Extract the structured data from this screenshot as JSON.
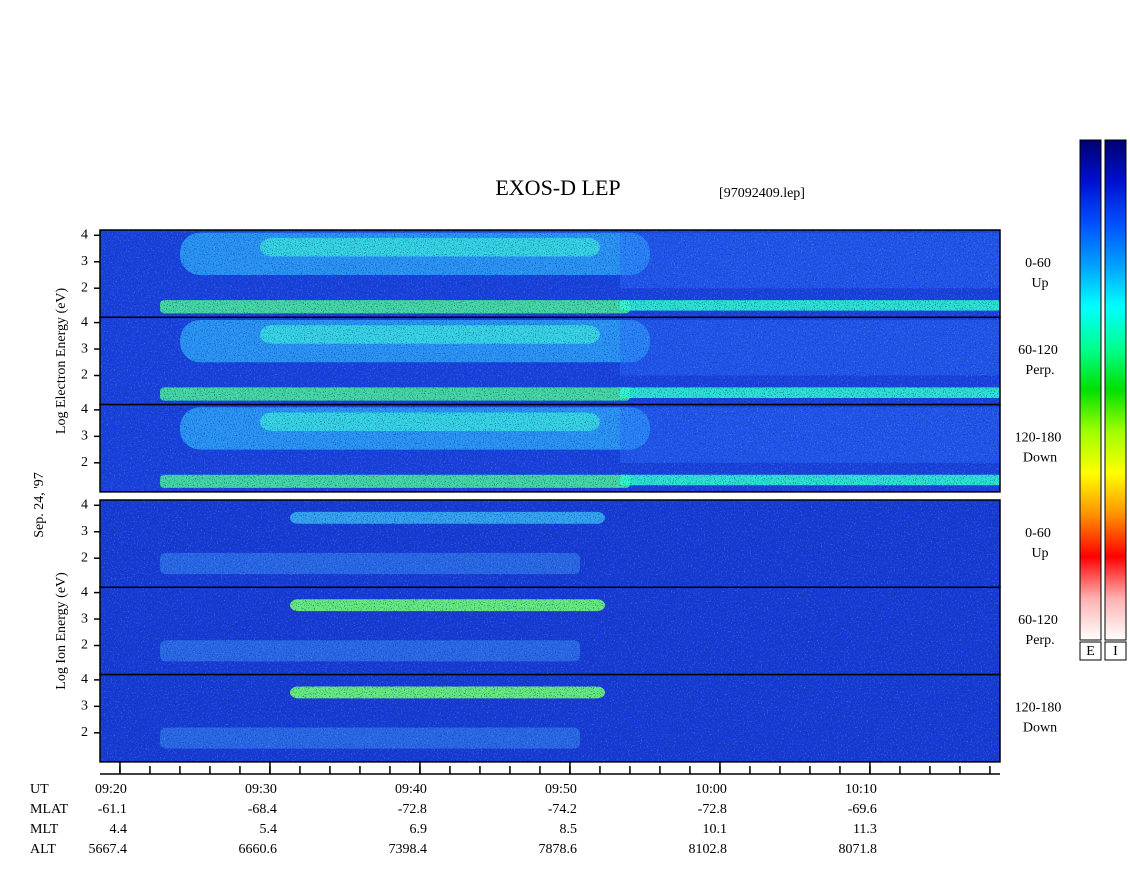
{
  "chart_data": {
    "type": "spectrogram",
    "title": "EXOS-D LEP",
    "file": "[97092409.lep]",
    "date_label": "Sep. 24, '97",
    "groups": [
      {
        "y_label": "Log Electron Energy (eV)",
        "panels": [
          {
            "label": "0-60",
            "sublabel": "Up"
          },
          {
            "label": "60-120",
            "sublabel": "Perp."
          },
          {
            "label": "120-180",
            "sublabel": "Down"
          }
        ]
      },
      {
        "y_label": "Log Ion Energy (eV)",
        "panels": [
          {
            "label": "0-60",
            "sublabel": "Up"
          },
          {
            "label": "60-120",
            "sublabel": "Perp."
          },
          {
            "label": "120-180",
            "sublabel": "Down"
          }
        ]
      }
    ],
    "ylim": [
      0.9,
      4.2
    ],
    "yticks": [
      2,
      3,
      4
    ],
    "xlim": [
      558.67,
      618.67
    ],
    "x_minor_step": 2,
    "xticks": [
      {
        "value": 560,
        "label": "09:20"
      },
      {
        "value": 570,
        "label": "09:30"
      },
      {
        "value": 580,
        "label": "09:40"
      },
      {
        "value": 590,
        "label": "09:50"
      },
      {
        "value": 600,
        "label": "10:00"
      },
      {
        "value": 610,
        "label": "10:10"
      }
    ],
    "x_label": "UT",
    "orbit_rows": [
      {
        "label": "MLAT",
        "values": [
          -61.1,
          -68.4,
          -72.8,
          -74.2,
          -72.8,
          -69.6
        ]
      },
      {
        "label": "MLT",
        "values": [
          4.4,
          5.4,
          6.9,
          8.5,
          10.1,
          11.3
        ]
      },
      {
        "label": "ALT",
        "values": [
          5667.4,
          6660.6,
          7398.4,
          7878.6,
          8102.8,
          8071.8
        ]
      }
    ],
    "colorbar_labels": [
      "E",
      "I"
    ],
    "colormap": [
      "#000070",
      "#0010d0",
      "#0050ff",
      "#00a0ff",
      "#00ffff",
      "#00ff90",
      "#00e000",
      "#a0ff00",
      "#ffff00",
      "#ff9000",
      "#ff0000",
      "#ffb0b0",
      "#ffffff"
    ]
  }
}
